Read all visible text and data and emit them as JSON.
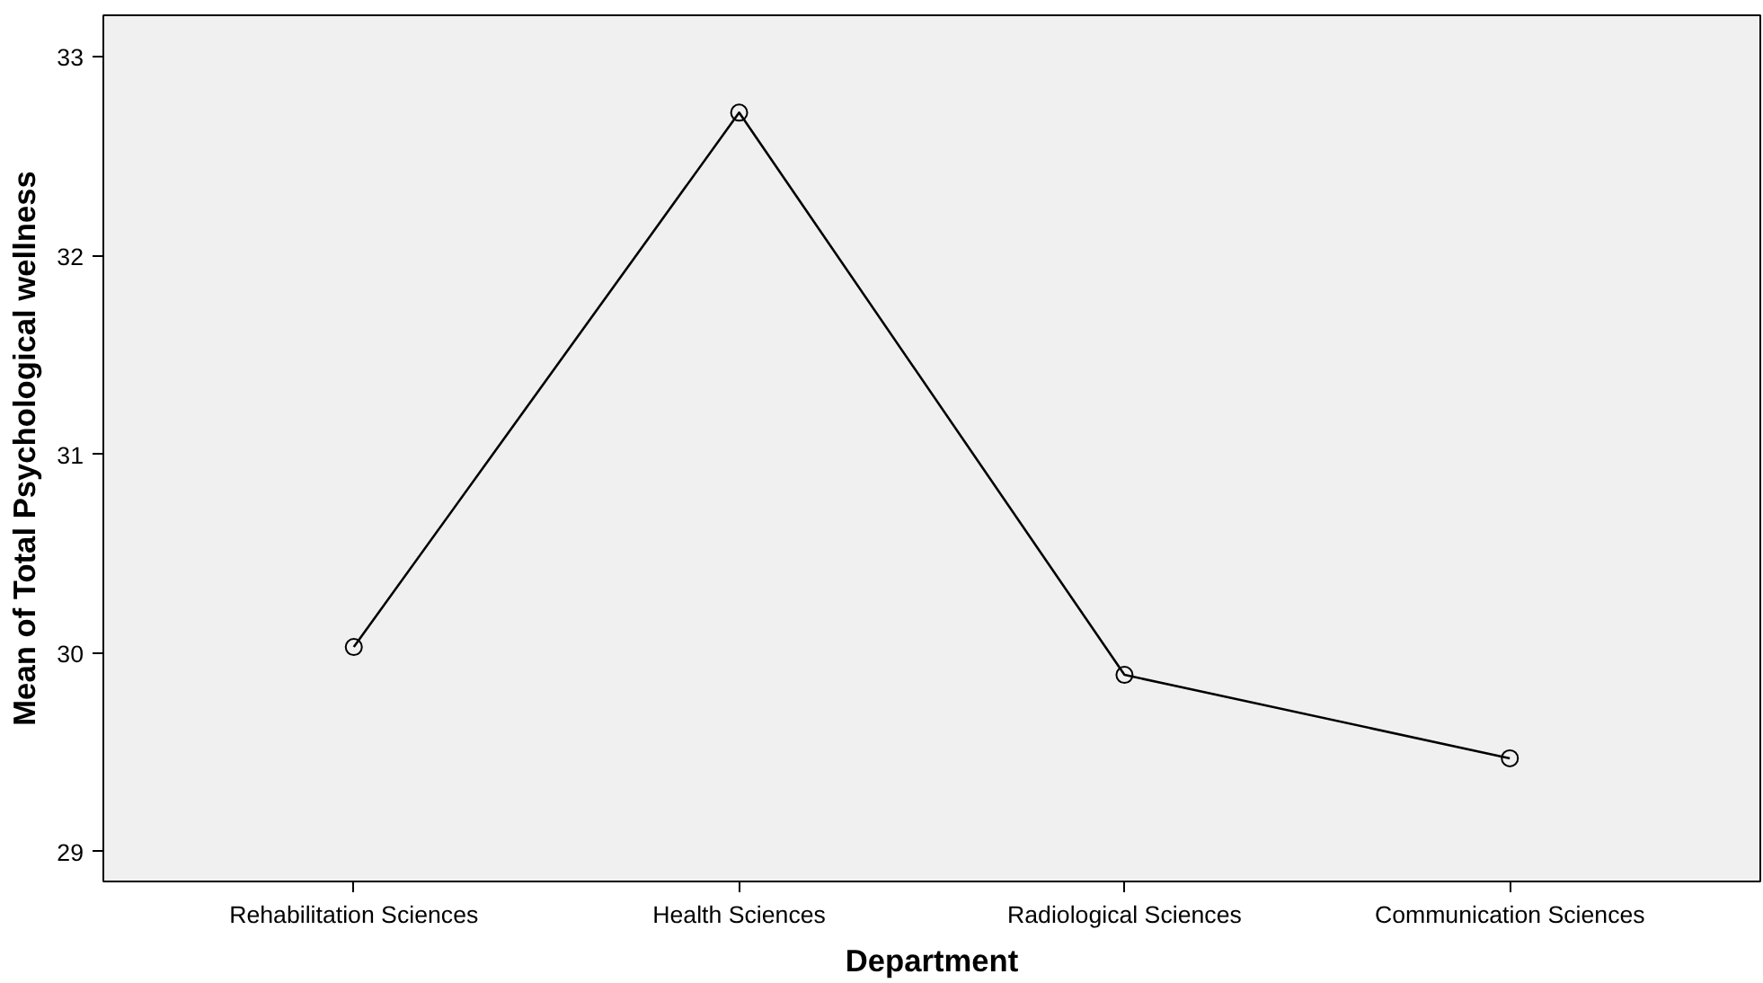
{
  "chart_data": {
    "type": "line",
    "xlabel": "Department",
    "ylabel": "Mean of Total Psychological wellness",
    "categories": [
      "Rehabilitation Sciences",
      "Health Sciences",
      "Radiological Sciences",
      "Communication Sciences"
    ],
    "values": [
      30.03,
      32.72,
      29.89,
      29.47
    ],
    "color": "#000000",
    "ylim": [
      28.85,
      33.21
    ],
    "yticks": [
      29,
      30,
      31,
      32,
      33
    ],
    "grid": false,
    "marker": "circle",
    "line_style": "solid"
  }
}
